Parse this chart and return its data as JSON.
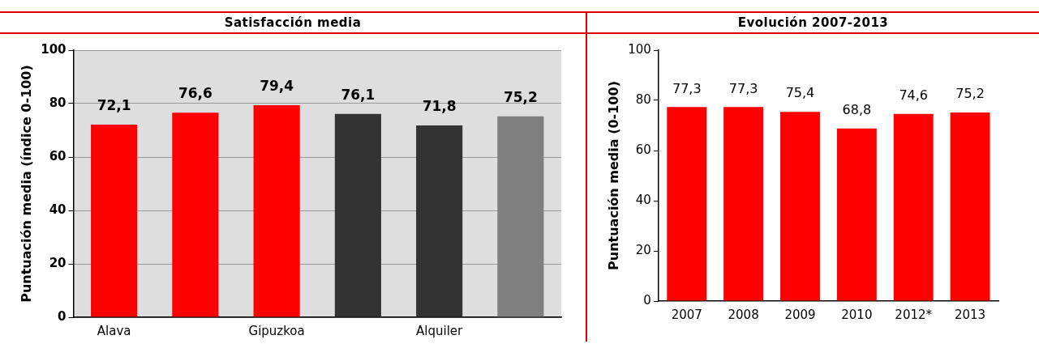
{
  "chart_data": [
    {
      "type": "bar",
      "title": "Satisfacción media",
      "ylabel": "Puntuación media (índice 0-100)",
      "categories": [
        "Alava",
        null,
        "Gipuzkoa",
        null,
        "Alquiler",
        null
      ],
      "values": [
        72.1,
        76.6,
        79.4,
        76.1,
        71.8,
        75.2
      ],
      "colors": [
        "#ff0000",
        "#ff0000",
        "#ff0000",
        "#333333",
        "#333333",
        "#808080"
      ],
      "ylim": [
        0,
        100
      ],
      "yticks": [
        0,
        20,
        40,
        60,
        80,
        100
      ],
      "grid": "y",
      "value_labels": [
        "72,1",
        "76,6",
        "79,4",
        "76,1",
        "71,8",
        "75,2"
      ]
    },
    {
      "type": "bar",
      "title": "Evolución 2007-2013",
      "ylabel": "Puntuación media (0-100)",
      "categories": [
        "2007",
        "2008",
        "2009",
        "2010",
        "2012*",
        "2013"
      ],
      "values": [
        77.3,
        77.3,
        75.4,
        68.8,
        74.6,
        75.2
      ],
      "colors": [
        "#ff0000",
        "#ff0000",
        "#ff0000",
        "#ff0000",
        "#ff0000",
        "#ff0000"
      ],
      "ylim": [
        0,
        100
      ],
      "yticks": [
        0,
        20,
        40,
        60,
        80,
        100
      ],
      "value_labels": [
        "77,3",
        "77,3",
        "75,4",
        "68,8",
        "74,6",
        "75,2"
      ]
    }
  ]
}
